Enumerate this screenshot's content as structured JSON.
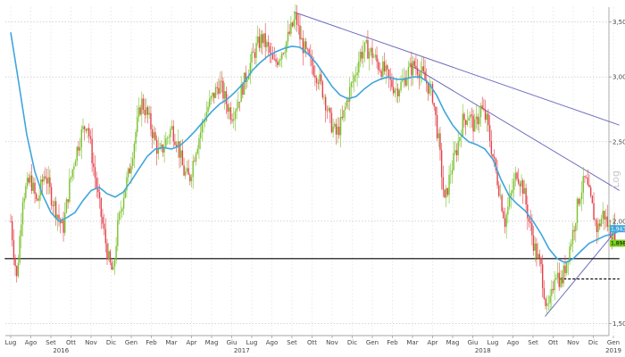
{
  "chart_data": {
    "type": "line",
    "scale": "log",
    "scale_label": "Log",
    "ylim": [
      1.45,
      3.65
    ],
    "y_ticks": [
      {
        "value": 1.5,
        "label": "1,50"
      },
      {
        "value": 2.0,
        "label": "2,00"
      },
      {
        "value": 2.5,
        "label": "2,50"
      },
      {
        "value": 3.0,
        "label": "3,00"
      },
      {
        "value": 3.5,
        "label": "3,50"
      }
    ],
    "x_months": [
      "Lug",
      "Ago",
      "Set",
      "Ott",
      "Nov",
      "Dic",
      "Gen",
      "Feb",
      "Mar",
      "Apr",
      "Mag",
      "Giu",
      "Lug",
      "Ago",
      "Set",
      "Ott",
      "Nov",
      "Dic",
      "Gen",
      "Feb",
      "Mar",
      "Apr",
      "Mag",
      "Giu",
      "Lug",
      "Ago",
      "Set",
      "Ott",
      "Nov",
      "Dic",
      "Gen"
    ],
    "x_years": [
      {
        "label": "2016",
        "month_index": 2.5
      },
      {
        "label": "2017",
        "month_index": 11.5
      },
      {
        "label": "2018",
        "month_index": 23.5
      },
      {
        "label": "2019",
        "month_index": 30
      }
    ],
    "grid": true,
    "series": [
      {
        "kind": "price",
        "points": [
          [
            0.0,
            2.0
          ],
          [
            0.3,
            1.7
          ],
          [
            0.6,
            2.15
          ],
          [
            1.0,
            2.25
          ],
          [
            1.3,
            2.1
          ],
          [
            1.7,
            2.3
          ],
          [
            2.0,
            2.15
          ],
          [
            2.3,
            2.05
          ],
          [
            2.6,
            1.95
          ],
          [
            2.9,
            2.2
          ],
          [
            3.2,
            2.4
          ],
          [
            3.5,
            2.55
          ],
          [
            3.8,
            2.65
          ],
          [
            4.1,
            2.35
          ],
          [
            4.4,
            2.1
          ],
          [
            4.7,
            1.9
          ],
          [
            4.9,
            1.78
          ],
          [
            5.1,
            1.72
          ],
          [
            5.3,
            1.95
          ],
          [
            5.6,
            2.15
          ],
          [
            5.9,
            2.3
          ],
          [
            6.2,
            2.55
          ],
          [
            6.5,
            2.8
          ],
          [
            6.8,
            2.7
          ],
          [
            7.1,
            2.55
          ],
          [
            7.4,
            2.4
          ],
          [
            7.7,
            2.5
          ],
          [
            8.0,
            2.6
          ],
          [
            8.3,
            2.5
          ],
          [
            8.6,
            2.3
          ],
          [
            8.9,
            2.25
          ],
          [
            9.2,
            2.45
          ],
          [
            9.5,
            2.6
          ],
          [
            9.8,
            2.75
          ],
          [
            10.1,
            2.85
          ],
          [
            10.4,
            2.95
          ],
          [
            10.7,
            2.8
          ],
          [
            11.0,
            2.7
          ],
          [
            11.3,
            2.8
          ],
          [
            11.6,
            2.95
          ],
          [
            11.9,
            3.1
          ],
          [
            12.2,
            3.25
          ],
          [
            12.5,
            3.35
          ],
          [
            12.8,
            3.25
          ],
          [
            13.1,
            3.1
          ],
          [
            13.4,
            3.2
          ],
          [
            13.7,
            3.3
          ],
          [
            14.0,
            3.45
          ],
          [
            14.2,
            3.55
          ],
          [
            14.4,
            3.35
          ],
          [
            14.7,
            3.2
          ],
          [
            15.0,
            3.1
          ],
          [
            15.3,
            3.0
          ],
          [
            15.6,
            2.85
          ],
          [
            15.9,
            2.65
          ],
          [
            16.2,
            2.55
          ],
          [
            16.5,
            2.65
          ],
          [
            16.8,
            2.85
          ],
          [
            17.1,
            3.0
          ],
          [
            17.4,
            3.2
          ],
          [
            17.7,
            3.25
          ],
          [
            18.0,
            3.2
          ],
          [
            18.3,
            3.1
          ],
          [
            18.6,
            3.05
          ],
          [
            18.9,
            2.95
          ],
          [
            19.2,
            2.9
          ],
          [
            19.5,
            2.95
          ],
          [
            19.8,
            3.05
          ],
          [
            20.1,
            3.1
          ],
          [
            20.4,
            3.05
          ],
          [
            20.7,
            2.95
          ],
          [
            21.0,
            2.85
          ],
          [
            21.3,
            2.5
          ],
          [
            21.6,
            2.1
          ],
          [
            21.9,
            2.3
          ],
          [
            22.2,
            2.45
          ],
          [
            22.5,
            2.65
          ],
          [
            22.8,
            2.7
          ],
          [
            23.1,
            2.6
          ],
          [
            23.4,
            2.75
          ],
          [
            23.7,
            2.65
          ],
          [
            24.0,
            2.4
          ],
          [
            24.3,
            2.2
          ],
          [
            24.6,
            2.0
          ],
          [
            24.9,
            2.15
          ],
          [
            25.2,
            2.3
          ],
          [
            25.5,
            2.2
          ],
          [
            25.8,
            2.0
          ],
          [
            26.1,
            1.85
          ],
          [
            26.4,
            1.75
          ],
          [
            26.7,
            1.55
          ],
          [
            26.9,
            1.6
          ],
          [
            27.1,
            1.75
          ],
          [
            27.4,
            1.68
          ],
          [
            27.7,
            1.8
          ],
          [
            28.0,
            1.95
          ],
          [
            28.3,
            2.15
          ],
          [
            28.6,
            2.25
          ],
          [
            28.9,
            2.1
          ],
          [
            29.2,
            1.95
          ],
          [
            29.5,
            2.05
          ],
          [
            29.8,
            1.95
          ],
          [
            30.1,
            1.94
          ]
        ]
      },
      {
        "kind": "moving_average",
        "color": "#3ea6dd",
        "points": [
          [
            0.0,
            3.4
          ],
          [
            0.4,
            2.95
          ],
          [
            0.8,
            2.55
          ],
          [
            1.2,
            2.3
          ],
          [
            1.6,
            2.15
          ],
          [
            2.0,
            2.05
          ],
          [
            2.4,
            2.0
          ],
          [
            2.8,
            2.02
          ],
          [
            3.2,
            2.05
          ],
          [
            3.6,
            2.12
          ],
          [
            4.0,
            2.18
          ],
          [
            4.4,
            2.2
          ],
          [
            4.8,
            2.16
          ],
          [
            5.2,
            2.14
          ],
          [
            5.6,
            2.17
          ],
          [
            6.0,
            2.24
          ],
          [
            6.4,
            2.32
          ],
          [
            6.8,
            2.4
          ],
          [
            7.2,
            2.45
          ],
          [
            7.6,
            2.46
          ],
          [
            8.0,
            2.45
          ],
          [
            8.4,
            2.47
          ],
          [
            8.8,
            2.52
          ],
          [
            9.2,
            2.58
          ],
          [
            9.6,
            2.65
          ],
          [
            10.0,
            2.72
          ],
          [
            10.4,
            2.78
          ],
          [
            10.8,
            2.82
          ],
          [
            11.2,
            2.88
          ],
          [
            11.6,
            2.95
          ],
          [
            12.0,
            3.05
          ],
          [
            12.4,
            3.12
          ],
          [
            12.8,
            3.18
          ],
          [
            13.2,
            3.22
          ],
          [
            13.6,
            3.25
          ],
          [
            14.0,
            3.27
          ],
          [
            14.4,
            3.26
          ],
          [
            14.8,
            3.2
          ],
          [
            15.2,
            3.12
          ],
          [
            15.6,
            3.02
          ],
          [
            16.0,
            2.92
          ],
          [
            16.4,
            2.85
          ],
          [
            16.8,
            2.82
          ],
          [
            17.2,
            2.84
          ],
          [
            17.6,
            2.9
          ],
          [
            18.0,
            2.95
          ],
          [
            18.4,
            2.98
          ],
          [
            18.8,
            3.0
          ],
          [
            19.2,
            2.98
          ],
          [
            19.6,
            2.98
          ],
          [
            20.0,
            3.0
          ],
          [
            20.4,
            3.0
          ],
          [
            20.8,
            2.95
          ],
          [
            21.2,
            2.85
          ],
          [
            21.6,
            2.72
          ],
          [
            22.0,
            2.62
          ],
          [
            22.4,
            2.55
          ],
          [
            22.8,
            2.5
          ],
          [
            23.2,
            2.48
          ],
          [
            23.6,
            2.45
          ],
          [
            24.0,
            2.38
          ],
          [
            24.4,
            2.25
          ],
          [
            24.8,
            2.15
          ],
          [
            25.2,
            2.1
          ],
          [
            25.6,
            2.06
          ],
          [
            26.0,
            2.0
          ],
          [
            26.4,
            1.93
          ],
          [
            26.8,
            1.85
          ],
          [
            27.2,
            1.8
          ],
          [
            27.6,
            1.78
          ],
          [
            28.0,
            1.8
          ],
          [
            28.4,
            1.84
          ],
          [
            28.8,
            1.88
          ],
          [
            29.2,
            1.9
          ],
          [
            29.6,
            1.92
          ],
          [
            30.0,
            1.93
          ],
          [
            30.2,
            1.94
          ]
        ]
      }
    ],
    "reference_lines": [
      {
        "style": "solid",
        "color": "#6d6dbf",
        "from": [
          14.1,
          3.6
        ],
        "to": [
          30.3,
          2.62
        ]
      },
      {
        "style": "solid",
        "color": "#6d6dbf",
        "from": [
          19.9,
          3.1
        ],
        "to": [
          30.3,
          2.18
        ]
      },
      {
        "style": "solid",
        "color": "#6d6dbf",
        "from": [
          26.6,
          1.53
        ],
        "to": [
          30.3,
          1.97
        ]
      },
      {
        "style": "solid",
        "color": "#000000",
        "from": [
          -0.3,
          1.8
        ],
        "to": [
          30.3,
          1.8
        ]
      },
      {
        "style": "dashed",
        "color": "#000000",
        "from": [
          27.3,
          1.7
        ],
        "to": [
          30.3,
          1.7
        ]
      }
    ],
    "value_tags": [
      {
        "label": "1,9434",
        "value": 1.9434,
        "color": "#3ea6dd",
        "text_color": "#ffffff"
      },
      {
        "label": "1,8986",
        "value": 1.8986,
        "color": "#7dd321",
        "text_color": "#000000"
      }
    ]
  }
}
